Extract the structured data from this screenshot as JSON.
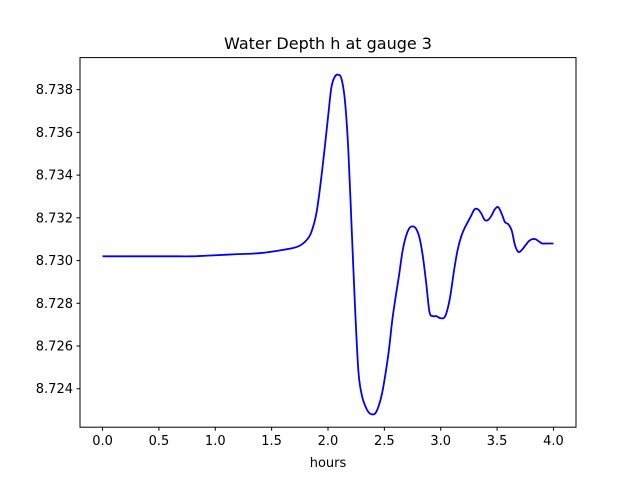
{
  "chart_data": {
    "type": "line",
    "title": "Water Depth h at gauge 3",
    "xlabel": "hours",
    "ylabel": "",
    "xlim": [
      -0.2,
      4.2
    ],
    "ylim": [
      8.7222,
      8.7395
    ],
    "x_ticks": [
      0.0,
      0.5,
      1.0,
      1.5,
      2.0,
      2.5,
      3.0,
      3.5,
      4.0
    ],
    "x_tick_labels": [
      "0.0",
      "0.5",
      "1.0",
      "1.5",
      "2.0",
      "2.5",
      "3.0",
      "3.5",
      "4.0"
    ],
    "y_ticks": [
      8.724,
      8.726,
      8.728,
      8.73,
      8.732,
      8.734,
      8.736,
      8.738
    ],
    "y_tick_labels": [
      "8.724",
      "8.726",
      "8.728",
      "8.730",
      "8.732",
      "8.734",
      "8.736",
      "8.738"
    ],
    "grid": false,
    "line_color": "#0000ff",
    "series": [
      {
        "x": [
          0.0,
          0.3,
          0.6,
          0.8,
          1.0,
          1.2,
          1.4,
          1.6,
          1.7,
          1.75,
          1.8,
          1.85,
          1.9,
          1.95,
          2.0,
          2.03,
          2.06,
          2.09,
          2.12,
          2.15,
          2.18,
          2.21,
          2.24,
          2.27,
          2.3,
          2.33,
          2.36,
          2.39,
          2.42,
          2.45,
          2.48,
          2.51,
          2.54,
          2.57,
          2.6,
          2.63,
          2.66,
          2.69,
          2.72,
          2.75,
          2.78,
          2.81,
          2.84,
          2.87,
          2.9,
          2.93,
          2.96,
          3.0,
          3.04,
          3.08,
          3.12,
          3.15,
          3.18,
          3.21,
          3.24,
          3.27,
          3.3,
          3.33,
          3.36,
          3.39,
          3.42,
          3.45,
          3.48,
          3.51,
          3.54,
          3.57,
          3.6,
          3.63,
          3.66,
          3.69,
          3.72,
          3.75,
          3.78,
          3.81,
          3.84,
          3.87,
          3.9,
          3.93,
          3.96,
          4.0
        ],
        "y": [
          8.7302,
          8.7302,
          8.7302,
          8.7302,
          8.73025,
          8.7303,
          8.73035,
          8.7305,
          8.7306,
          8.7307,
          8.7309,
          8.7313,
          8.7323,
          8.7343,
          8.7367,
          8.7381,
          8.7386,
          8.7387,
          8.7385,
          8.7375,
          8.7352,
          8.7315,
          8.7278,
          8.7248,
          8.7237,
          8.7232,
          8.7229,
          8.7228,
          8.72285,
          8.7232,
          8.7238,
          8.7247,
          8.7258,
          8.7272,
          8.7283,
          8.7293,
          8.7304,
          8.7311,
          8.7315,
          8.7316,
          8.7315,
          8.7311,
          8.73025,
          8.729,
          8.7276,
          8.7274,
          8.7274,
          8.7273,
          8.7274,
          8.7282,
          8.7296,
          8.7305,
          8.7311,
          8.7315,
          8.7318,
          8.7321,
          8.7324,
          8.7324,
          8.7322,
          8.7319,
          8.7319,
          8.7321,
          8.7324,
          8.7325,
          8.7322,
          8.7318,
          8.7317,
          8.7314,
          8.7307,
          8.7304,
          8.7305,
          8.7307,
          8.7309,
          8.731,
          8.731,
          8.7309,
          8.7308,
          8.7308,
          8.7308,
          8.7308
        ]
      }
    ]
  }
}
